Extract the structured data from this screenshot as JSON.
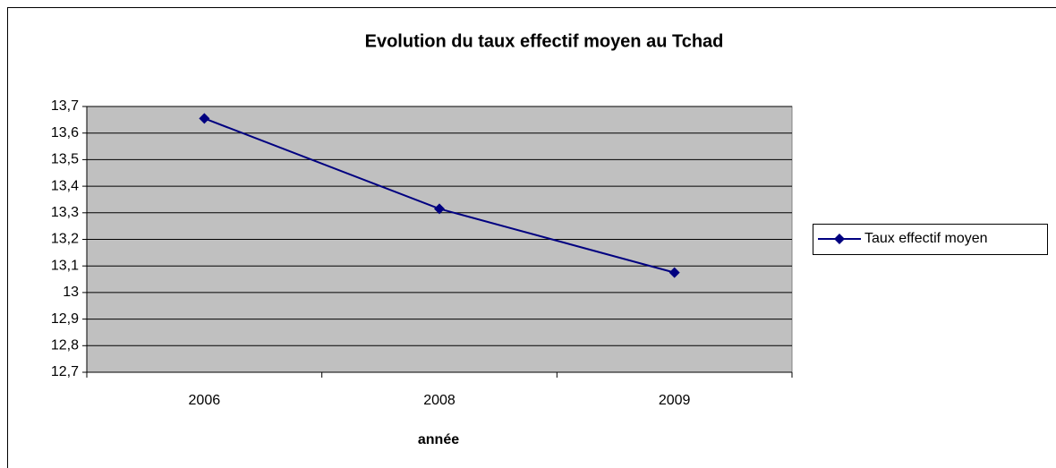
{
  "chart_data": {
    "type": "line",
    "title": "Evolution du taux effectif moyen au Tchad",
    "x_label": "année",
    "categories": [
      "2006",
      "2008",
      "2009"
    ],
    "series": [
      {
        "name": "Taux effectif moyen",
        "color": "#000080",
        "values": [
          13.655,
          13.315,
          13.075
        ]
      }
    ],
    "ylim": [
      12.7,
      13.7
    ],
    "yticks": [
      {
        "value": 12.7,
        "label": "12,7"
      },
      {
        "value": 12.8,
        "label": "12,8"
      },
      {
        "value": 12.9,
        "label": "12,9"
      },
      13,
      {
        "value": 13.1,
        "label": "13,1"
      },
      {
        "value": 13.2,
        "label": "13,2"
      },
      {
        "value": 13.3,
        "label": "13,3"
      },
      {
        "value": 13.4,
        "label": "13,4"
      },
      {
        "value": 13.5,
        "label": "13,5"
      },
      {
        "value": 13.6,
        "label": "13,6"
      },
      {
        "value": 13.7,
        "label": "13,7"
      }
    ],
    "grid": true,
    "legend": "right"
  }
}
